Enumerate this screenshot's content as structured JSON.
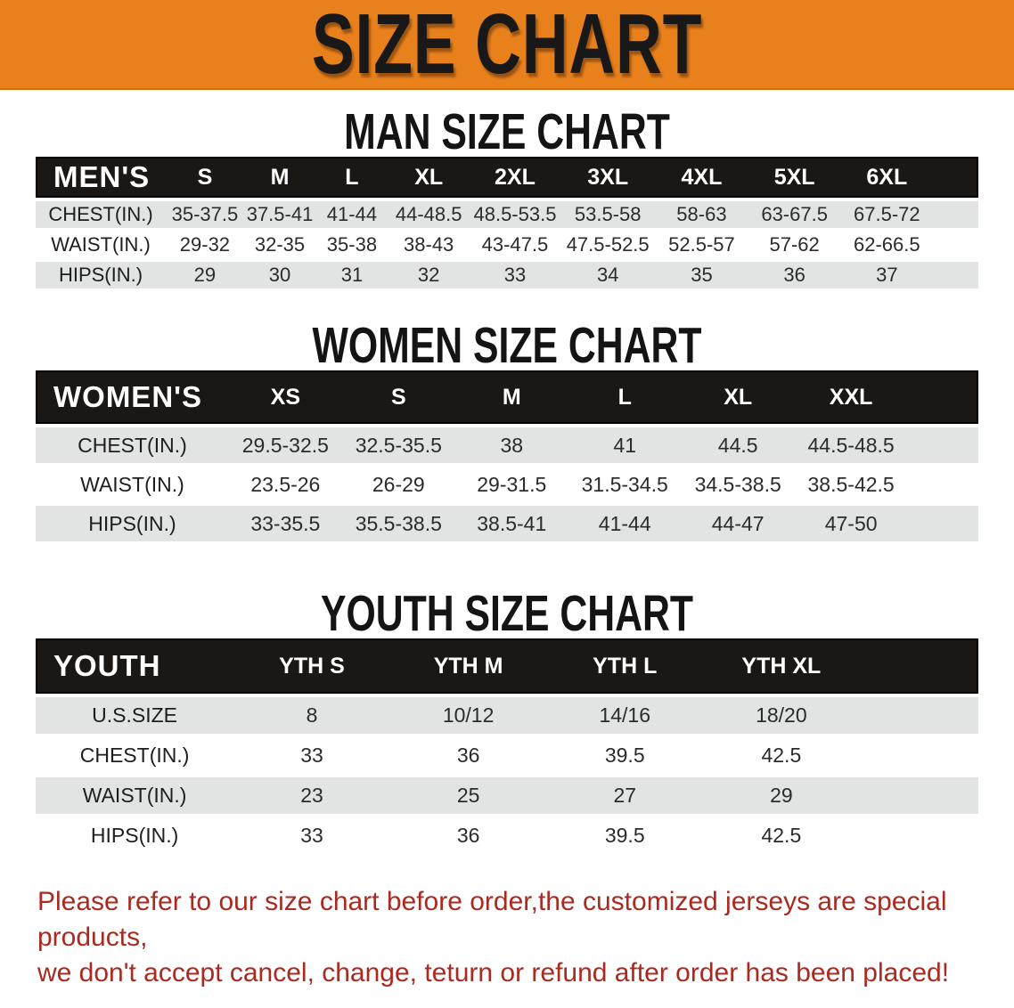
{
  "banner": {
    "title": "SIZE CHART"
  },
  "sections": [
    {
      "heading": "MAN SIZE CHART",
      "table": {
        "header_label": "MEN'S",
        "columns": [
          "S",
          "M",
          "L",
          "XL",
          "2XL",
          "3XL",
          "4XL",
          "5XL",
          "6XL"
        ],
        "rows": [
          {
            "label": "CHEST(IN.)",
            "values": [
              "35-37.5",
              "37.5-41",
              "41-44",
              "44-48.5",
              "48.5-53.5",
              "53.5-58",
              "58-63",
              "63-67.5",
              "67.5-72"
            ]
          },
          {
            "label": "WAIST(IN.)",
            "values": [
              "29-32",
              "32-35",
              "35-38",
              "38-43",
              "43-47.5",
              "47.5-52.5",
              "52.5-57",
              "57-62",
              "62-66.5"
            ]
          },
          {
            "label": "HIPS(IN.)",
            "values": [
              "29",
              "30",
              "31",
              "32",
              "33",
              "34",
              "35",
              "36",
              "37"
            ]
          }
        ]
      }
    },
    {
      "heading": "WOMEN SIZE CHART",
      "table": {
        "header_label": "WOMEN'S",
        "columns": [
          "XS",
          "S",
          "M",
          "L",
          "XL",
          "XXL"
        ],
        "rows": [
          {
            "label": "CHEST(IN.)",
            "values": [
              "29.5-32.5",
              "32.5-35.5",
              "38",
              "41",
              "44.5",
              "44.5-48.5"
            ]
          },
          {
            "label": "WAIST(IN.)",
            "values": [
              "23.5-26",
              "26-29",
              "29-31.5",
              "31.5-34.5",
              "34.5-38.5",
              "38.5-42.5"
            ]
          },
          {
            "label": "HIPS(IN.)",
            "values": [
              "33-35.5",
              "35.5-38.5",
              "38.5-41",
              "41-44",
              "44-47",
              "47-50"
            ]
          }
        ]
      }
    },
    {
      "heading": "YOUTH SIZE CHART",
      "table": {
        "header_label": "YOUTH",
        "columns": [
          "YTH S",
          "YTH M",
          "YTH L",
          "YTH XL"
        ],
        "rows": [
          {
            "label": "U.S.SIZE",
            "values": [
              "8",
              "10/12",
              "14/16",
              "18/20"
            ]
          },
          {
            "label": "CHEST(IN.)",
            "values": [
              "33",
              "36",
              "39.5",
              "42.5"
            ]
          },
          {
            "label": "WAIST(IN.)",
            "values": [
              "23",
              "25",
              "27",
              "29"
            ]
          },
          {
            "label": "HIPS(IN.)",
            "values": [
              "33",
              "36",
              "39.5",
              "42.5"
            ]
          }
        ]
      }
    }
  ],
  "footer_note": {
    "line1": "Please refer to our size chart before order,the customized jerseys are special products,",
    "line2": "we don't accept cancel, change, teturn or refund after order has been placed!"
  },
  "colors": {
    "banner-bg": "#e8811c",
    "banner-text": "#181818",
    "table-header-bg": "#1b1715",
    "table-header-text": "#ffffff",
    "row-gray": "#e2e3e3",
    "note-red": "#ab2a20"
  }
}
